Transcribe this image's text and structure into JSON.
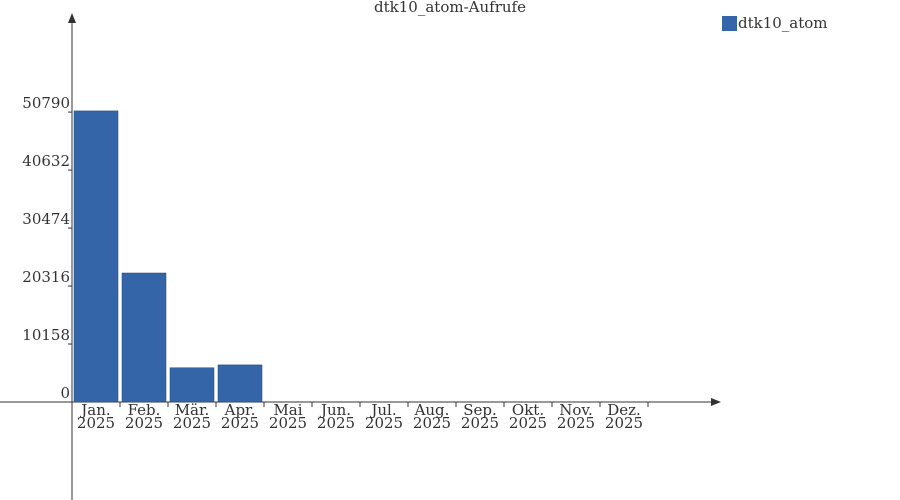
{
  "chart_data": {
    "type": "bar",
    "title": "dtk10_atom-Aufrufe",
    "categories": [
      "Jan. 2025",
      "Feb. 2025",
      "Mär. 2025",
      "Apr. 2025",
      "Mai 2025",
      "Jun. 2025",
      "Jul. 2025",
      "Aug. 2025",
      "Sep. 2025",
      "Okt. 2025",
      "Nov. 2025",
      "Dez. 2025"
    ],
    "series": [
      {
        "name": "dtk10_atom",
        "color": "#3465a8",
        "values": [
          51000,
          22600,
          6000,
          6500,
          null,
          null,
          null,
          null,
          null,
          null,
          null,
          null
        ]
      }
    ],
    "ylim": [
      0,
      67800
    ],
    "yticks": [
      0,
      10158,
      20316,
      30474,
      40632,
      50790
    ]
  }
}
